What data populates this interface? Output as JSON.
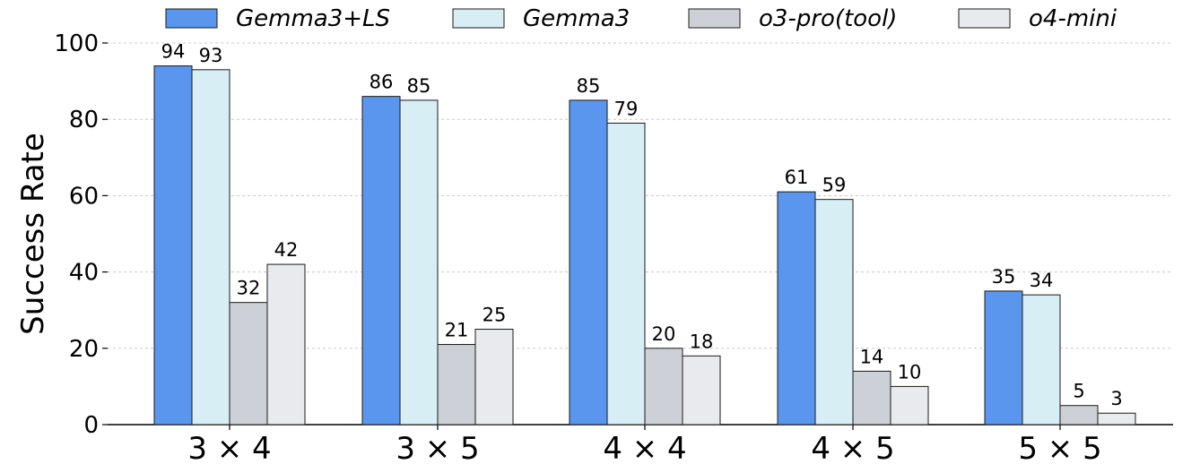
{
  "chart_data": {
    "type": "bar",
    "categories": [
      "3 × 4",
      "3 × 5",
      "4 × 4",
      "4 × 5",
      "5 × 5"
    ],
    "series": [
      {
        "name": "Gemma3+LS",
        "values": [
          94,
          86,
          85,
          61,
          35
        ],
        "color": "#5b96ee"
      },
      {
        "name": "Gemma3",
        "values": [
          93,
          85,
          79,
          59,
          34
        ],
        "color": "#d6eef4"
      },
      {
        "name": "o3-pro(tool)",
        "values": [
          32,
          21,
          20,
          14,
          5
        ],
        "color": "#cdd0d6"
      },
      {
        "name": "o4-mini",
        "values": [
          42,
          25,
          18,
          10,
          3
        ],
        "color": "#e9eaee"
      }
    ],
    "xlabel": "",
    "ylabel": "Success Rate",
    "ylim": [
      0,
      100
    ],
    "yticks": [
      0,
      20,
      40,
      60,
      80,
      100
    ],
    "grid": true,
    "legend_position": "top"
  }
}
